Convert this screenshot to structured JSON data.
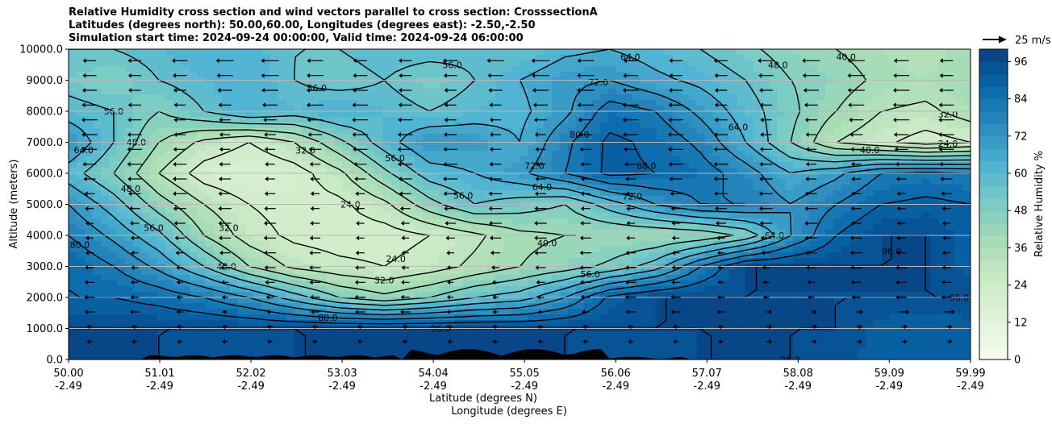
{
  "chart_data": {
    "type": "heatmap",
    "title_lines": [
      "Relative Humidity cross section and wind vectors parallel to cross section: CrosssectionA",
      "Latitudes (degrees north): 50.00,60.00, Longitudes (degrees east): -2.50,-2.50",
      "Simulation start time: 2024-09-24 00:00:00, Valid time: 2024-09-24 06:00:00"
    ],
    "ylabel": "Altitude (meters)",
    "xlabel_lines": [
      "Latitude (degrees N)",
      "Longitude (degrees E)"
    ],
    "ylim": [
      0,
      10000
    ],
    "yticks": [
      "0.0",
      "1000.0",
      "2000.0",
      "3000.0",
      "4000.0",
      "5000.0",
      "6000.0",
      "7000.0",
      "8000.0",
      "9000.0",
      "10000.0"
    ],
    "xlim": [
      50.0,
      59.99
    ],
    "xticks": [
      {
        "lat": "50.00",
        "lon": "-2.49"
      },
      {
        "lat": "51.01",
        "lon": "-2.49"
      },
      {
        "lat": "52.02",
        "lon": "-2.49"
      },
      {
        "lat": "53.03",
        "lon": "-2.49"
      },
      {
        "lat": "54.04",
        "lon": "-2.49"
      },
      {
        "lat": "55.05",
        "lon": "-2.49"
      },
      {
        "lat": "56.06",
        "lon": "-2.49"
      },
      {
        "lat": "57.07",
        "lon": "-2.49"
      },
      {
        "lat": "58.08",
        "lon": "-2.49"
      },
      {
        "lat": "59.09",
        "lon": "-2.49"
      },
      {
        "lat": "59.99",
        "lon": "-2.49"
      }
    ],
    "colorbar": {
      "label": "Relative Humidity %",
      "range": [
        0,
        100
      ],
      "ticks": [
        "0",
        "12",
        "24",
        "36",
        "48",
        "60",
        "72",
        "84",
        "96"
      ],
      "colormap": "GnBu"
    },
    "wind_key_label": "25 m/s",
    "contour_levels": [
      16,
      24,
      32,
      40,
      48,
      56,
      64,
      72,
      80,
      88,
      96
    ],
    "grid": "horizontal",
    "rh_field": {
      "lat": [
        50.0,
        50.5,
        51.0,
        51.5,
        52.0,
        52.5,
        53.0,
        53.5,
        54.0,
        54.5,
        55.0,
        55.5,
        56.0,
        56.5,
        57.0,
        57.5,
        58.0,
        58.5,
        59.0,
        59.5,
        59.99
      ],
      "alt": [
        0,
        1000,
        2000,
        3000,
        4000,
        5000,
        6000,
        7000,
        8000,
        9000,
        10000
      ],
      "rh": [
        [
          96,
          96,
          96,
          94,
          95,
          96,
          96,
          96,
          96,
          96,
          96,
          96,
          94,
          94,
          96,
          96,
          96,
          94,
          90,
          88,
          90
        ],
        [
          96,
          96,
          96,
          96,
          96,
          96,
          96,
          96,
          96,
          96,
          96,
          96,
          96,
          96,
          96,
          96,
          96,
          96,
          90,
          88,
          90
        ],
        [
          88,
          88,
          85,
          80,
          72,
          60,
          48,
          42,
          48,
          56,
          60,
          72,
          90,
          96,
          96,
          96,
          96,
          96,
          96,
          96,
          96
        ],
        [
          88,
          80,
          70,
          56,
          40,
          30,
          26,
          24,
          28,
          34,
          40,
          44,
          50,
          60,
          80,
          96,
          96,
          96,
          96,
          96,
          90
        ],
        [
          80,
          70,
          58,
          40,
          28,
          22,
          20,
          20,
          24,
          30,
          38,
          40,
          40,
          40,
          42,
          50,
          72,
          88,
          96,
          96,
          90
        ],
        [
          72,
          60,
          44,
          32,
          24,
          20,
          22,
          30,
          45,
          56,
          52,
          48,
          60,
          72,
          80,
          80,
          72,
          80,
          88,
          90,
          88
        ],
        [
          60,
          48,
          32,
          20,
          16,
          20,
          30,
          46,
          60,
          64,
          70,
          80,
          90,
          88,
          84,
          76,
          64,
          70,
          80,
          82,
          80
        ],
        [
          72,
          56,
          40,
          30,
          24,
          32,
          46,
          60,
          72,
          70,
          64,
          78,
          90,
          86,
          78,
          64,
          48,
          32,
          26,
          20,
          24
        ],
        [
          60,
          56,
          48,
          56,
          64,
          60,
          64,
          60,
          56,
          60,
          62,
          70,
          84,
          80,
          70,
          60,
          50,
          40,
          32,
          30,
          36
        ],
        [
          52,
          48,
          56,
          60,
          64,
          56,
          52,
          56,
          50,
          56,
          64,
          70,
          72,
          66,
          62,
          56,
          48,
          44,
          38,
          36,
          40
        ],
        [
          56,
          56,
          60,
          64,
          62,
          56,
          56,
          60,
          60,
          58,
          56,
          62,
          64,
          60,
          56,
          50,
          44,
          40,
          36,
          34,
          38
        ]
      ]
    },
    "wind_u": -1
  }
}
